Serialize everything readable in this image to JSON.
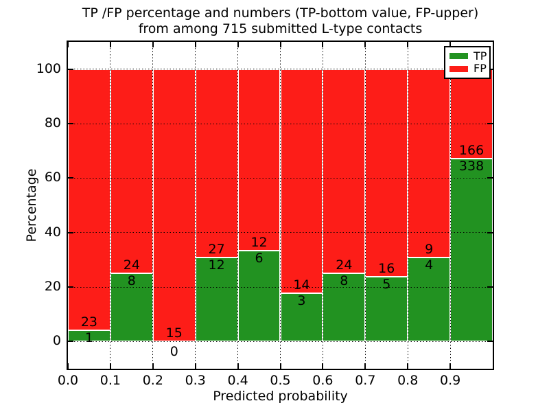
{
  "chart_data": {
    "type": "bar",
    "stacked": true,
    "normalized_to_percent": true,
    "title": "TP /FP percentage and numbers (TP-bottom value, FP-upper)\nfrom among 715 submitted L-type contacts",
    "xlabel": "Predicted probability",
    "ylabel": "Percentage",
    "xlim": [
      0.0,
      1.0
    ],
    "ylim": [
      -10,
      110
    ],
    "x_tick_labels": [
      "0.0",
      "0.1",
      "0.2",
      "0.3",
      "0.4",
      "0.5",
      "0.6",
      "0.7",
      "0.8",
      "0.9"
    ],
    "y_tick_values": [
      0,
      20,
      40,
      60,
      80,
      100
    ],
    "grid": "dotted",
    "legend_position": "upper-right",
    "categories": [
      "0.0-0.1",
      "0.1-0.2",
      "0.2-0.3",
      "0.3-0.4",
      "0.4-0.5",
      "0.5-0.6",
      "0.6-0.7",
      "0.7-0.8",
      "0.8-0.9",
      "0.9-1.0"
    ],
    "series": [
      {
        "name": "TP",
        "color": "#229221",
        "counts": [
          1,
          8,
          0,
          12,
          6,
          3,
          8,
          5,
          4,
          338
        ]
      },
      {
        "name": "FP",
        "color": "#fd1d18",
        "counts": [
          23,
          24,
          15,
          27,
          12,
          14,
          24,
          16,
          9,
          166
        ]
      }
    ],
    "tp_percent_of_bin": [
      4.17,
      25.0,
      0.0,
      30.77,
      33.33,
      17.65,
      25.0,
      23.81,
      30.77,
      67.06
    ],
    "total_contacts": 715
  }
}
